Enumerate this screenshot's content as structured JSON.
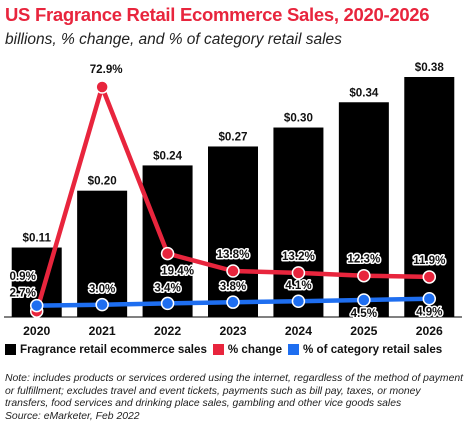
{
  "chart_data": {
    "type": "bar",
    "title": "US Fragrance Retail Ecommerce Sales, 2020-2026",
    "subtitle": "billions, % change, and % of category retail sales",
    "categories": [
      "2020",
      "2021",
      "2022",
      "2023",
      "2024",
      "2025",
      "2026"
    ],
    "series": [
      {
        "name": "Fragrance retail ecommerce sales",
        "kind": "bar",
        "color": "#000000",
        "values": [
          0.11,
          0.2,
          0.24,
          0.27,
          0.3,
          0.34,
          0.38
        ],
        "labels": [
          "$0.11",
          "$0.20",
          "$0.24",
          "$0.27",
          "$0.30",
          "$0.34",
          "$0.38"
        ]
      },
      {
        "name": "% change",
        "kind": "line",
        "color": "#e8253d",
        "values": [
          0.9,
          72.9,
          19.4,
          13.8,
          13.2,
          12.3,
          11.9
        ],
        "labels": [
          "0.9%",
          "72.9%",
          "19.4%",
          "13.8%",
          "13.2%",
          "12.3%",
          "11.9%"
        ]
      },
      {
        "name": "% of category retail sales",
        "kind": "line",
        "color": "#1e6ef0",
        "values": [
          2.7,
          3.0,
          3.4,
          3.8,
          4.1,
          4.5,
          4.9
        ],
        "labels": [
          "2.7%",
          "3.0%",
          "3.4%",
          "3.8%",
          "4.1%",
          "4.5%",
          "4.9%"
        ]
      }
    ],
    "legend_position": "bottom",
    "grid": false
  },
  "legend": [
    {
      "label": "Fragrance retail ecommerce sales",
      "color": "#000000"
    },
    {
      "label": "% change",
      "color": "#e8253d"
    },
    {
      "label": "% of category retail sales",
      "color": "#1e6ef0"
    }
  ],
  "note": "Note: includes products or services ordered using the internet, regardless of the method of payment or fulfillment; excludes travel and event tickets, payments such as bill pay, taxes, or money transfers, food services and drinking place sales, gambling and other vice goods sales",
  "source": "Source: eMarketer, Feb 2022"
}
